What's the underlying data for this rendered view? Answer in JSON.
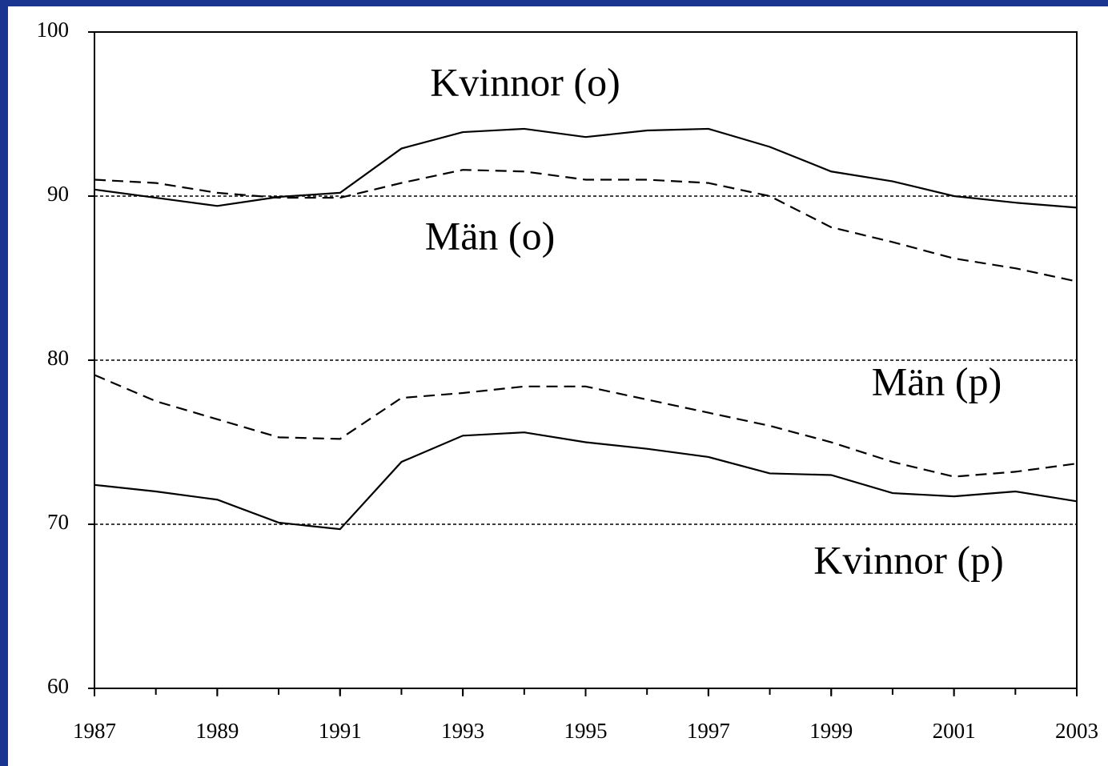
{
  "chart_data": {
    "type": "line",
    "x": [
      1987,
      1988,
      1989,
      1990,
      1991,
      1992,
      1993,
      1994,
      1995,
      1996,
      1997,
      1998,
      1999,
      2000,
      2001,
      2002,
      2003
    ],
    "xlim": [
      1987,
      2003
    ],
    "xticks": [
      1987,
      1989,
      1991,
      1993,
      1995,
      1997,
      1999,
      2001,
      2003
    ],
    "ylim": [
      60,
      100
    ],
    "yticks": [
      60,
      70,
      80,
      90,
      100
    ],
    "grid": true,
    "series": [
      {
        "name": "Kvinnor (o)",
        "color": "#000000",
        "style": "solid",
        "values": [
          90.4,
          89.9,
          89.4,
          89.95,
          90.2,
          92.9,
          93.9,
          94.1,
          93.6,
          94.0,
          94.1,
          93.0,
          91.5,
          90.9,
          90.0,
          89.6,
          89.3
        ]
      },
      {
        "name": "Män (o)",
        "color": "#000000",
        "style": "dashed",
        "values": [
          91.0,
          90.8,
          90.2,
          89.9,
          89.9,
          90.8,
          91.6,
          91.5,
          91.0,
          91.0,
          90.8,
          90.0,
          88.1,
          87.2,
          86.2,
          85.6,
          84.8
        ]
      },
      {
        "name": "Män (p)",
        "color": "#000000",
        "style": "dashed",
        "values": [
          79.1,
          77.5,
          76.4,
          75.3,
          75.2,
          77.7,
          78.0,
          78.4,
          78.4,
          77.6,
          76.8,
          76.0,
          75.0,
          73.8,
          72.9,
          73.2,
          73.7
        ]
      },
      {
        "name": "Kvinnor (p)",
        "color": "#000000",
        "style": "solid",
        "values": [
          72.4,
          72.0,
          71.5,
          70.1,
          69.7,
          73.8,
          75.4,
          75.6,
          75.0,
          74.6,
          74.1,
          73.1,
          73.0,
          71.9,
          71.7,
          72.0,
          71.4
        ]
      }
    ]
  }
}
